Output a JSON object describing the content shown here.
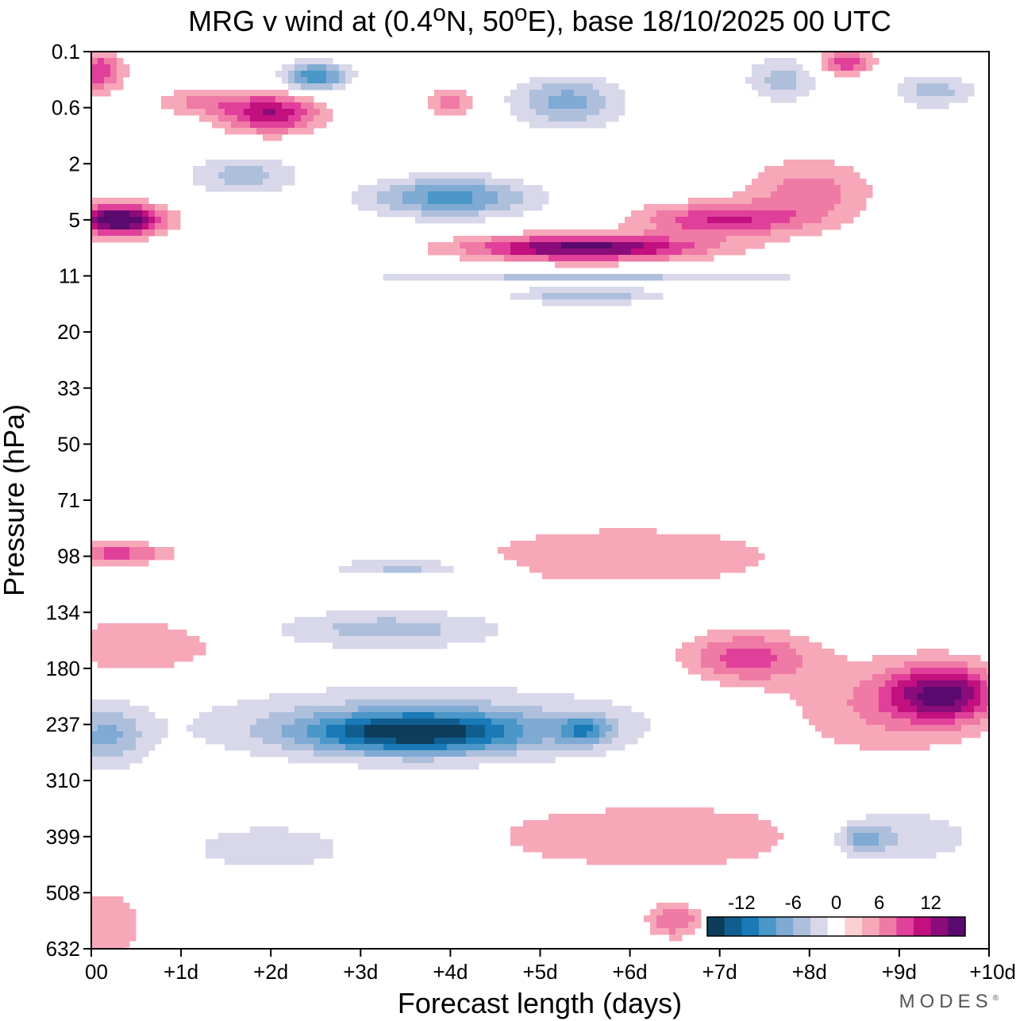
{
  "chart_data": {
    "type": "heatmap",
    "title": "MRG v wind at (0.4°N, 50°E),  base 18/10/2025  00 UTC",
    "title_parts": {
      "prefix": "MRG v wind at (0.4",
      "lat_unit": "N, 50",
      "lon_unit": "E),  base 18/10/2025  00 UTC",
      "degree": "o"
    },
    "xlabel": "Forecast length (days)",
    "ylabel": "Pressure (hPa)",
    "x_ticks": [
      "00",
      "+1d",
      "+2d",
      "+3d",
      "+4d",
      "+5d",
      "+6d",
      "+7d",
      "+8d",
      "+9d",
      "+10d"
    ],
    "xlim": [
      0,
      10
    ],
    "y_ticks": [
      "0.1",
      "0.6",
      "2",
      "5",
      "11",
      "20",
      "33",
      "50",
      "71",
      "98",
      "134",
      "180",
      "237",
      "310",
      "399",
      "508",
      "632"
    ],
    "colorbar": {
      "ticks": [
        "-12",
        "-6",
        "0",
        "6",
        "12"
      ],
      "levels": [
        -14,
        -12,
        -10,
        -8,
        -6,
        -4,
        -2,
        0,
        2,
        4,
        6,
        8,
        10,
        12,
        14
      ],
      "colors": [
        "#0d3d5a",
        "#0f5e8f",
        "#1a7ab8",
        "#4a97c8",
        "#7eaad3",
        "#aebfdc",
        "#d8d8ea",
        "#ffffff",
        "#fad0d3",
        "#f6a8b8",
        "#f07aa6",
        "#e0409a",
        "#c2107f",
        "#8a0c7a",
        "#5a0a6e"
      ]
    },
    "features": [
      {
        "x": 0.3,
        "p_idx": 3.0,
        "wx": 0.5,
        "wy": 0.28,
        "value": 15
      },
      {
        "x": 0.1,
        "p_idx": 0.35,
        "wx": 0.25,
        "wy": 0.35,
        "value": 8
      },
      {
        "x": 2.0,
        "p_idx": 1.1,
        "wx": 0.55,
        "wy": 0.35,
        "value": 10
      },
      {
        "x": 1.2,
        "p_idx": 0.9,
        "wx": 0.5,
        "wy": 0.25,
        "value": 4
      },
      {
        "x": 4.0,
        "p_idx": 0.9,
        "wx": 0.25,
        "wy": 0.25,
        "value": 5
      },
      {
        "x": 5.5,
        "p_idx": 3.5,
        "wx": 1.3,
        "wy": 0.22,
        "value": 13
      },
      {
        "x": 7.0,
        "p_idx": 3.0,
        "wx": 0.9,
        "wy": 0.3,
        "value": 8
      },
      {
        "x": 8.0,
        "p_idx": 2.5,
        "wx": 0.7,
        "wy": 0.6,
        "value": 5
      },
      {
        "x": 8.4,
        "p_idx": 0.2,
        "wx": 0.3,
        "wy": 0.2,
        "value": 8
      },
      {
        "x": 2.5,
        "p_idx": 0.45,
        "wx": 0.35,
        "wy": 0.25,
        "value": -10
      },
      {
        "x": 5.3,
        "p_idx": 0.9,
        "wx": 0.6,
        "wy": 0.45,
        "value": -7
      },
      {
        "x": 4.0,
        "p_idx": 2.6,
        "wx": 0.9,
        "wy": 0.35,
        "value": -9
      },
      {
        "x": 1.7,
        "p_idx": 2.2,
        "wx": 0.6,
        "wy": 0.35,
        "value": -5
      },
      {
        "x": 7.7,
        "p_idx": 0.5,
        "wx": 0.4,
        "wy": 0.4,
        "value": -5
      },
      {
        "x": 9.4,
        "p_idx": 0.7,
        "wx": 0.45,
        "wy": 0.3,
        "value": -5
      },
      {
        "x": 5.5,
        "p_idx": 4.0,
        "wx": 2.5,
        "wy": 0.07,
        "value": -5
      },
      {
        "x": 5.5,
        "p_idx": 4.35,
        "wx": 0.8,
        "wy": 0.15,
        "value": -6
      },
      {
        "x": 0.3,
        "p_idx": 8.95,
        "wx": 0.6,
        "wy": 0.18,
        "value": 7
      },
      {
        "x": 3.5,
        "p_idx": 9.2,
        "wx": 0.8,
        "wy": 0.15,
        "value": -5
      },
      {
        "x": 6.0,
        "p_idx": 9.0,
        "wx": 1.8,
        "wy": 0.55,
        "value": 4
      },
      {
        "x": 7.3,
        "p_idx": 10.8,
        "wx": 0.7,
        "wy": 0.45,
        "value": 7
      },
      {
        "x": 9.5,
        "p_idx": 11.45,
        "wx": 0.6,
        "wy": 0.5,
        "value": 11
      },
      {
        "x": 8.8,
        "p_idx": 11.7,
        "wx": 1.2,
        "wy": 0.9,
        "value": 4
      },
      {
        "x": 3.3,
        "p_idx": 10.3,
        "wx": 1.3,
        "wy": 0.35,
        "value": -5
      },
      {
        "x": 3.6,
        "p_idx": 12.15,
        "wx": 1.2,
        "wy": 0.35,
        "value": -12
      },
      {
        "x": 5.5,
        "p_idx": 12.1,
        "wx": 0.3,
        "wy": 0.25,
        "value": -7
      },
      {
        "x": 3.7,
        "p_idx": 12.0,
        "wx": 2.6,
        "wy": 0.7,
        "value": -5
      },
      {
        "x": 0.15,
        "p_idx": 12.2,
        "wx": 0.45,
        "wy": 0.55,
        "value": -6
      },
      {
        "x": 0.5,
        "p_idx": 10.6,
        "wx": 1.0,
        "wy": 0.5,
        "value": 4
      },
      {
        "x": 6.3,
        "p_idx": 14.0,
        "wx": 2.0,
        "wy": 0.6,
        "value": 4
      },
      {
        "x": 9.0,
        "p_idx": 14.0,
        "wx": 0.9,
        "wy": 0.55,
        "value": -4
      },
      {
        "x": 8.6,
        "p_idx": 14.05,
        "wx": 0.25,
        "wy": 0.25,
        "value": -6
      },
      {
        "x": 2.0,
        "p_idx": 14.2,
        "wx": 1.2,
        "wy": 0.55,
        "value": -3
      },
      {
        "x": 0.1,
        "p_idx": 15.6,
        "wx": 0.5,
        "wy": 0.7,
        "value": 4
      },
      {
        "x": 6.5,
        "p_idx": 15.5,
        "wx": 0.3,
        "wy": 0.3,
        "value": 6
      }
    ]
  },
  "brand": {
    "name": "MODES",
    "mark": "®"
  }
}
